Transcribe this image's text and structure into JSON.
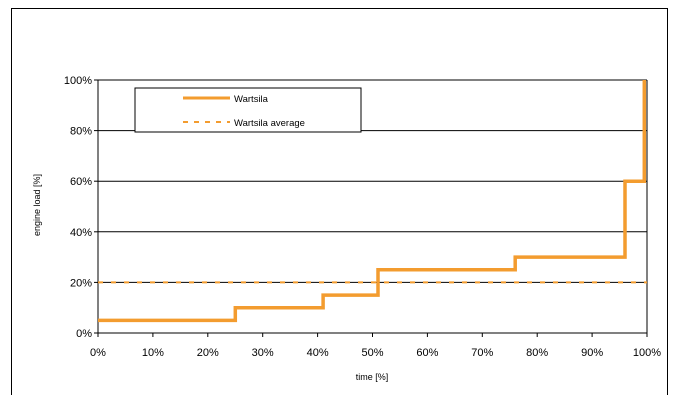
{
  "chart_data": {
    "type": "line",
    "title": "",
    "xlabel": "time [%]",
    "ylabel": "engine load [%]",
    "xlim": [
      0,
      100
    ],
    "ylim": [
      0,
      100
    ],
    "x_ticks": [
      "0%",
      "10%",
      "20%",
      "30%",
      "40%",
      "50%",
      "60%",
      "70%",
      "80%",
      "90%",
      "100%"
    ],
    "y_ticks": [
      "0%",
      "20%",
      "40%",
      "60%",
      "80%",
      "100%"
    ],
    "grid": "horizontal",
    "legend_position": "top-left",
    "series": [
      {
        "name": "Wartsila",
        "style": "solid-step",
        "color": "#F39C2F",
        "x": [
          0,
          25,
          25,
          41,
          41,
          51,
          51,
          76,
          76,
          96,
          96,
          99.5,
          99.5
        ],
        "y": [
          5,
          5,
          10,
          10,
          15,
          15,
          25,
          25,
          30,
          30,
          60,
          60,
          100
        ]
      },
      {
        "name": "Wartsila average",
        "style": "dashed",
        "color": "#F39C2F",
        "x": [
          0,
          100
        ],
        "y": [
          20,
          20
        ]
      }
    ]
  }
}
